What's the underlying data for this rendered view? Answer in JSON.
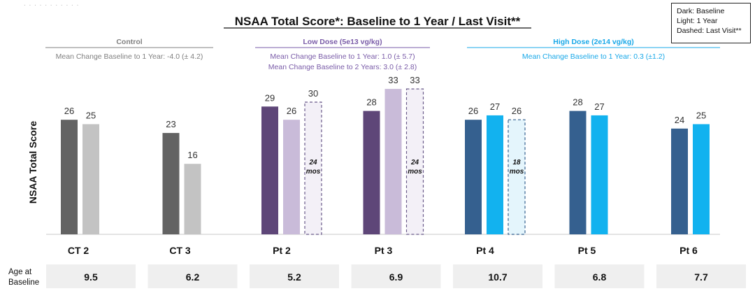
{
  "chart_data": {
    "type": "bar",
    "title": "NSAA Total Score*: Baseline to 1 Year / Last Visit**",
    "ylabel": "NSAA Total Score",
    "ylim": [
      0,
      34
    ],
    "grid": false,
    "legend": {
      "position": "top-right",
      "lines": [
        "Dark: Baseline",
        "Light: 1 Year",
        "Dashed: Last Visit**"
      ]
    },
    "groups": [
      {
        "label": "Control",
        "color": "#808080",
        "notes": [
          "Mean Change Baseline to 1 Year: -4.0 (± 4.2)"
        ],
        "subjects": [
          {
            "name": "CT 2",
            "age": "9.5",
            "bars": [
              {
                "kind": "baseline",
                "value": 26,
                "color": "#636363"
              },
              {
                "kind": "1year",
                "value": 25,
                "color": "#c3c3c3"
              }
            ]
          },
          {
            "name": "CT 3",
            "age": "6.2",
            "bars": [
              {
                "kind": "baseline",
                "value": 23,
                "color": "#636363"
              },
              {
                "kind": "1year",
                "value": 16,
                "color": "#c3c3c3"
              }
            ]
          }
        ]
      },
      {
        "label": "Low Dose (5e13 vg/kg)",
        "color": "#7a5ca8",
        "notes": [
          "Mean Change Baseline to 1 Year: 1.0 (± 5.7)",
          "Mean Change Baseline to 2 Years: 3.0 (± 2.8)"
        ],
        "subjects": [
          {
            "name": "Pt 2",
            "age": "5.2",
            "bars": [
              {
                "kind": "baseline",
                "value": 29,
                "color": "#5e4678"
              },
              {
                "kind": "1year",
                "value": 26,
                "color": "#c9bbd9"
              },
              {
                "kind": "last",
                "value": 30,
                "color": "#f3f0f7",
                "stroke": "#6a5a8a",
                "note": [
                  "24",
                  "mos"
                ]
              }
            ]
          },
          {
            "name": "Pt 3",
            "age": "6.9",
            "bars": [
              {
                "kind": "baseline",
                "value": 28,
                "color": "#5e4678"
              },
              {
                "kind": "1year",
                "value": 33,
                "color": "#c9bbd9"
              },
              {
                "kind": "last",
                "value": 33,
                "color": "#f3f0f7",
                "stroke": "#6a5a8a",
                "note": [
                  "24",
                  "mos"
                ]
              }
            ]
          }
        ]
      },
      {
        "label": "High Dose (2e14 vg/kg)",
        "color": "#19a8e8",
        "notes": [
          "Mean Change Baseline to 1 Year: 0.3 (±1.2)"
        ],
        "subjects": [
          {
            "name": "Pt 4",
            "age": "10.7",
            "bars": [
              {
                "kind": "baseline",
                "value": 26,
                "color": "#35608f"
              },
              {
                "kind": "1year",
                "value": 27,
                "color": "#12b2ef"
              },
              {
                "kind": "last",
                "value": 26,
                "color": "#e4f5fc",
                "stroke": "#35608f",
                "note": [
                  "18",
                  "mos"
                ]
              }
            ]
          },
          {
            "name": "Pt 5",
            "age": "6.8",
            "bars": [
              {
                "kind": "baseline",
                "value": 28,
                "color": "#35608f"
              },
              {
                "kind": "1year",
                "value": 27,
                "color": "#12b2ef"
              }
            ]
          },
          {
            "name": "Pt 6",
            "age": "7.7",
            "bars": [
              {
                "kind": "baseline",
                "value": 24,
                "color": "#35608f"
              },
              {
                "kind": "1year",
                "value": 25,
                "color": "#12b2ef"
              }
            ]
          }
        ]
      }
    ],
    "age_label": [
      "Age at",
      "Baseline"
    ]
  }
}
